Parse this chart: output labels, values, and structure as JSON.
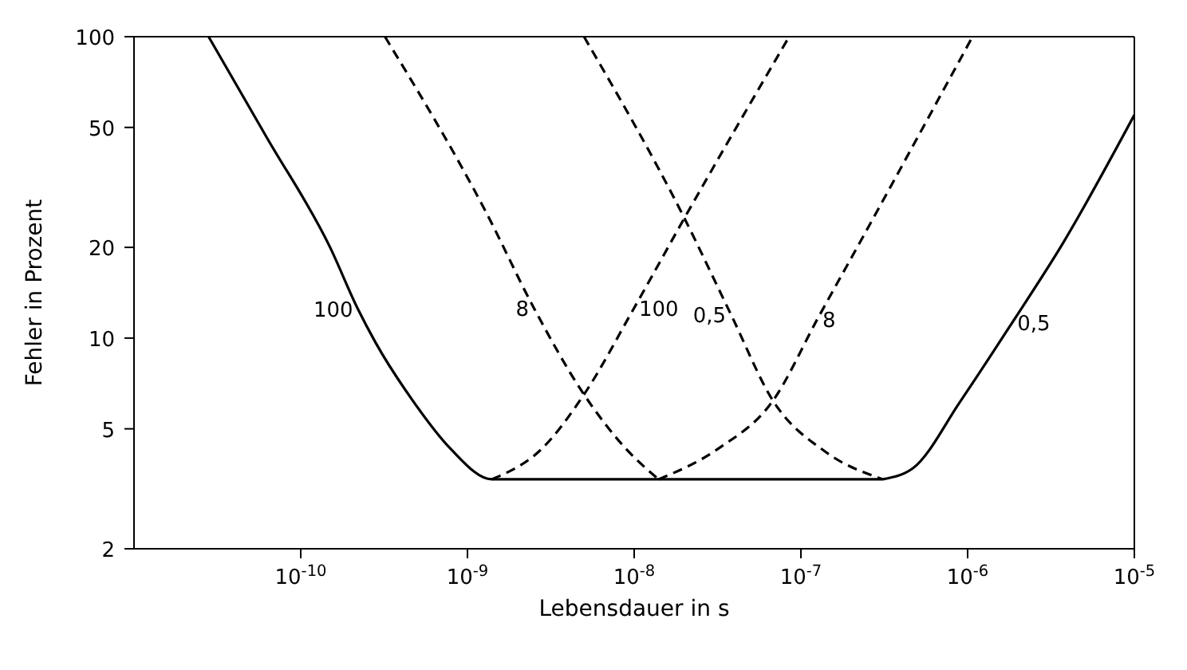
{
  "chart_data": {
    "type": "line",
    "xlabel": "Lebensdauer in s",
    "ylabel": "Fehler in Prozent",
    "log": "xy",
    "grid": false,
    "legend": false,
    "marker": "none",
    "xlim": [
      1e-11,
      1e-05
    ],
    "ylim": [
      2,
      100
    ],
    "xticks": [
      {
        "value": 1e-10,
        "label": "10$^{-10}$"
      },
      {
        "value": 1e-09,
        "label": "10$^{-9}$"
      },
      {
        "value": 1e-08,
        "label": "10$^{-8}$"
      },
      {
        "value": 1e-07,
        "label": "10$^{-7}$"
      },
      {
        "value": 1e-06,
        "label": "10$^{-6}$"
      },
      {
        "value": 1e-05,
        "label": "10$^{-5}$"
      }
    ],
    "yticks": [
      2,
      5,
      10,
      20,
      50,
      100
    ],
    "series": [
      {
        "name": "100",
        "color": "#000000",
        "line_style": "solid",
        "x": [
          2.8e-11,
          6.3e-11,
          1.5e-10,
          2.2e-10,
          2.8e-10,
          4.7e-10,
          7.9e-10,
          1.4e-09,
          3.1e-07
        ],
        "values": [
          100,
          46,
          20,
          12.5,
          9.7,
          6.2,
          4.3,
          3.4,
          3.4
        ]
      },
      {
        "name": "8",
        "color": "#000000",
        "line_style": "dashed",
        "x": [
          3.2e-10,
          1.3e-09,
          2.5e-09,
          5e-09,
          8.9e-09,
          1.4e-08
        ],
        "values": [
          100,
          26,
          12.6,
          6.5,
          4.3,
          3.4
        ]
      },
      {
        "name": "100",
        "color": "#000000",
        "line_style": "dashed",
        "x": [
          1.4e-09,
          2.8e-09,
          5e-09,
          1e-08,
          2e-08,
          8.5e-08
        ],
        "values": [
          3.4,
          4.3,
          6.5,
          12.6,
          25,
          100
        ]
      },
      {
        "name": "0,5",
        "color": "#000000",
        "line_style": "dashed",
        "x": [
          5e-09,
          2e-08,
          3.8e-08,
          6.8e-08,
          1.4e-07,
          3.1e-07
        ],
        "values": [
          100,
          25,
          12,
          6.2,
          4.2,
          3.4
        ]
      },
      {
        "name": "8",
        "color": "#000000",
        "line_style": "dashed",
        "x": [
          1.4e-08,
          3.2e-08,
          6.8e-08,
          1.26e-07,
          2.5e-07,
          1.07e-06
        ],
        "values": [
          3.4,
          4.3,
          6.2,
          11.6,
          23,
          100
        ]
      },
      {
        "name": "0,5",
        "color": "#000000",
        "line_style": "solid",
        "x": [
          3.1e-07,
          4.7e-07,
          9.1e-07,
          1.86e-06,
          3.7e-06,
          1e-05
        ],
        "values": [
          3.4,
          3.7,
          6.2,
          11.3,
          20.5,
          55
        ]
      }
    ]
  }
}
